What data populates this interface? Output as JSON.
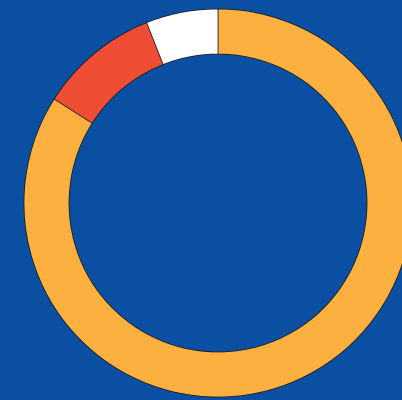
{
  "chart_data": {
    "type": "pie",
    "donut": true,
    "categories": [
      null,
      null,
      null
    ],
    "values": [
      84,
      10,
      6
    ],
    "colors": [
      "#fbb040",
      "#ef4e34",
      "#ffffff"
    ],
    "background": "#0b4fa2"
  }
}
